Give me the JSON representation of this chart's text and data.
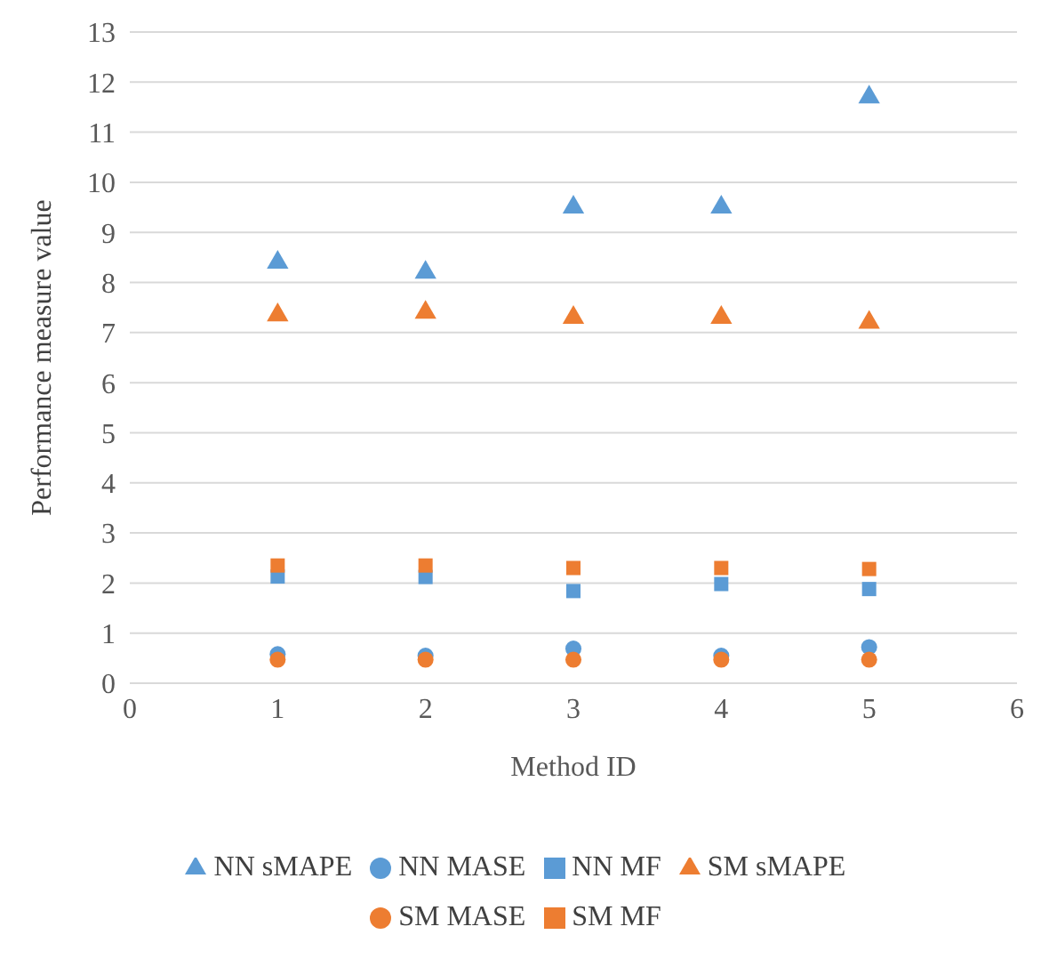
{
  "chart_data": {
    "type": "scatter",
    "xlabel": "Method ID",
    "ylabel": "Performance measure value",
    "x": [
      1,
      2,
      3,
      4,
      5
    ],
    "xlim": [
      0,
      6
    ],
    "xticks": [
      0,
      1,
      2,
      3,
      4,
      5,
      6
    ],
    "ylim": [
      0,
      13
    ],
    "yticks": [
      0,
      1,
      2,
      3,
      4,
      5,
      6,
      7,
      8,
      9,
      10,
      11,
      12,
      13
    ],
    "grid": "y",
    "legend": "bottom",
    "series": [
      {
        "name": "NN sMAPE",
        "color": "#5b9bd5",
        "marker": "triangle",
        "values": [
          8.4,
          8.2,
          9.5,
          9.5,
          11.7
        ]
      },
      {
        "name": "NN MASE",
        "color": "#5b9bd5",
        "marker": "circle",
        "values": [
          0.58,
          0.55,
          0.69,
          0.55,
          0.72
        ]
      },
      {
        "name": "NN MF",
        "color": "#5b9bd5",
        "marker": "square",
        "values": [
          2.13,
          2.12,
          1.84,
          1.98,
          1.88
        ]
      },
      {
        "name": "SM sMAPE",
        "color": "#ed7d31",
        "marker": "triangle",
        "values": [
          7.35,
          7.4,
          7.3,
          7.3,
          7.2
        ]
      },
      {
        "name": "SM MASE",
        "color": "#ed7d31",
        "marker": "circle",
        "values": [
          0.47,
          0.47,
          0.47,
          0.47,
          0.47
        ]
      },
      {
        "name": "SM MF",
        "color": "#ed7d31",
        "marker": "square",
        "values": [
          2.35,
          2.35,
          2.3,
          2.3,
          2.28
        ]
      }
    ]
  }
}
